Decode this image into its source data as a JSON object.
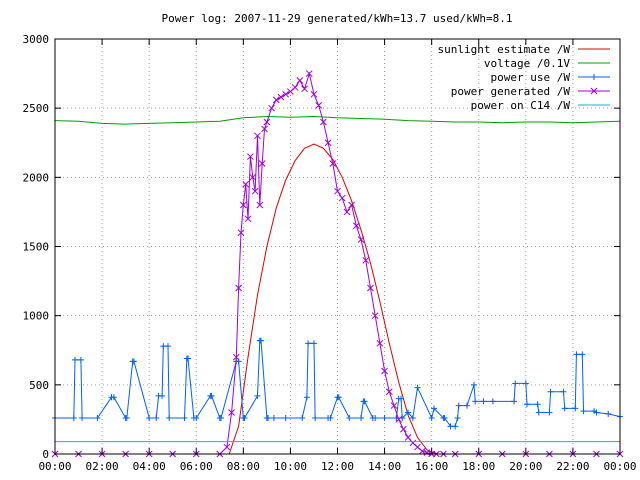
{
  "chart_data": {
    "type": "line",
    "title": "Power log: 2007-11-29 generated/kWh=13.7 used/kWh=8.1",
    "xlabel": "",
    "ylabel": "",
    "xlim": [
      0,
      24
    ],
    "ylim": [
      0,
      3000
    ],
    "x_tick_labels": [
      "00:00",
      "02:00",
      "04:00",
      "06:00",
      "08:00",
      "10:00",
      "12:00",
      "14:00",
      "16:00",
      "18:00",
      "20:00",
      "22:00",
      "00:00"
    ],
    "y_tick_labels": [
      "0",
      "500",
      "1000",
      "1500",
      "2000",
      "2500",
      "3000"
    ],
    "grid": true,
    "legend_position": "top-right",
    "series": [
      {
        "name": "sunlight estimate /W",
        "color": "#e00000",
        "style": "line",
        "x": [
          7.4,
          7.8,
          8.2,
          8.6,
          9.0,
          9.4,
          9.8,
          10.2,
          10.6,
          11.0,
          11.4,
          11.8,
          12.2,
          12.6,
          13.0,
          13.4,
          13.8,
          14.2,
          14.6,
          15.0,
          15.4,
          15.8,
          16.2
        ],
        "y": [
          0,
          200,
          700,
          1150,
          1500,
          1780,
          1980,
          2120,
          2210,
          2240,
          2210,
          2130,
          2000,
          1830,
          1620,
          1380,
          1100,
          800,
          520,
          280,
          120,
          30,
          0
        ]
      },
      {
        "name": "voltage /0.1V",
        "color": "#00a000",
        "style": "line",
        "x": [
          0,
          1,
          2,
          3,
          4,
          5,
          6,
          7,
          8,
          9,
          10,
          11,
          12,
          13,
          14,
          15,
          16,
          17,
          18,
          19,
          20,
          21,
          22,
          23,
          24
        ],
        "y": [
          2410,
          2405,
          2390,
          2385,
          2390,
          2395,
          2400,
          2405,
          2430,
          2440,
          2435,
          2440,
          2430,
          2425,
          2420,
          2410,
          2405,
          2400,
          2400,
          2395,
          2400,
          2400,
          2395,
          2400,
          2405
        ]
      },
      {
        "name": "power use /W",
        "color": "#0060ff",
        "style": "linespoints-plus",
        "x": [
          0.0,
          0.8,
          0.85,
          1.1,
          1.15,
          1.8,
          2.4,
          2.5,
          3.0,
          3.05,
          3.3,
          3.35,
          4.0,
          4.3,
          4.4,
          4.55,
          4.6,
          4.8,
          4.85,
          5.5,
          5.6,
          5.65,
          5.9,
          6.0,
          6.6,
          6.65,
          7.0,
          7.05,
          7.7,
          7.8,
          8.0,
          8.05,
          8.6,
          8.7,
          8.75,
          9.0,
          9.05,
          9.3,
          9.8,
          10.5,
          10.7,
          10.75,
          11.0,
          11.05,
          11.6,
          11.7,
          12.0,
          12.05,
          12.5,
          13.0,
          13.1,
          13.15,
          13.5,
          13.6,
          14.0,
          14.5,
          14.6,
          14.7,
          14.75,
          15.0,
          15.2,
          15.4,
          16.0,
          16.1,
          16.5,
          16.55,
          16.8,
          17.0,
          17.1,
          17.15,
          17.5,
          17.8,
          17.85,
          18.2,
          18.6,
          19.5,
          19.55,
          20.0,
          20.05,
          20.5,
          20.55,
          21.0,
          21.05,
          21.6,
          21.65,
          22.1,
          22.15,
          22.4,
          22.45,
          22.9,
          23.0,
          23.5,
          24.0
        ],
        "y": [
          260,
          260,
          680,
          680,
          260,
          260,
          410,
          410,
          260,
          260,
          670,
          670,
          260,
          260,
          420,
          420,
          780,
          780,
          260,
          260,
          690,
          690,
          260,
          260,
          420,
          420,
          260,
          260,
          670,
          670,
          260,
          260,
          420,
          820,
          820,
          260,
          260,
          260,
          260,
          260,
          410,
          800,
          800,
          260,
          260,
          260,
          410,
          410,
          260,
          260,
          380,
          380,
          260,
          260,
          260,
          260,
          400,
          400,
          260,
          300,
          260,
          480,
          260,
          330,
          260,
          260,
          200,
          200,
          260,
          350,
          350,
          500,
          380,
          380,
          380,
          380,
          510,
          510,
          360,
          360,
          300,
          300,
          450,
          450,
          330,
          330,
          720,
          720,
          310,
          310,
          300,
          290,
          270
        ]
      },
      {
        "name": "power generated /W",
        "color": "#a000e0",
        "style": "linespoints-cross",
        "x": [
          0.0,
          1.0,
          2.0,
          3.0,
          4.0,
          5.0,
          6.0,
          7.0,
          7.3,
          7.5,
          7.7,
          7.8,
          7.9,
          8.0,
          8.1,
          8.2,
          8.3,
          8.4,
          8.5,
          8.6,
          8.7,
          8.8,
          8.9,
          9.0,
          9.2,
          9.4,
          9.6,
          9.8,
          10.0,
          10.2,
          10.4,
          10.6,
          10.8,
          11.0,
          11.2,
          11.4,
          11.6,
          11.8,
          12.0,
          12.2,
          12.4,
          12.6,
          12.8,
          13.0,
          13.2,
          13.4,
          13.6,
          13.8,
          14.0,
          14.2,
          14.4,
          14.6,
          14.8,
          15.0,
          15.2,
          15.4,
          15.6,
          15.8,
          16.0,
          16.2,
          16.5,
          17.0,
          18.0,
          19.0,
          20.0,
          21.0,
          22.0,
          23.0,
          24.0
        ],
        "y": [
          0,
          0,
          0,
          0,
          0,
          0,
          0,
          0,
          50,
          300,
          700,
          1200,
          1600,
          1800,
          1950,
          1700,
          2150,
          2000,
          1900,
          2300,
          1800,
          2100,
          2350,
          2400,
          2500,
          2560,
          2580,
          2600,
          2620,
          2650,
          2700,
          2640,
          2750,
          2600,
          2520,
          2400,
          2250,
          2100,
          1900,
          1850,
          1750,
          1800,
          1650,
          1550,
          1400,
          1200,
          1000,
          800,
          600,
          450,
          350,
          250,
          180,
          120,
          80,
          50,
          20,
          10,
          0,
          0,
          0,
          0,
          0,
          0,
          0,
          0,
          0,
          0,
          0
        ]
      },
      {
        "name": "power on C14 /W",
        "color": "#00c0c0",
        "style": "line",
        "x": [
          0,
          24
        ],
        "y": [
          90,
          90
        ]
      }
    ]
  }
}
